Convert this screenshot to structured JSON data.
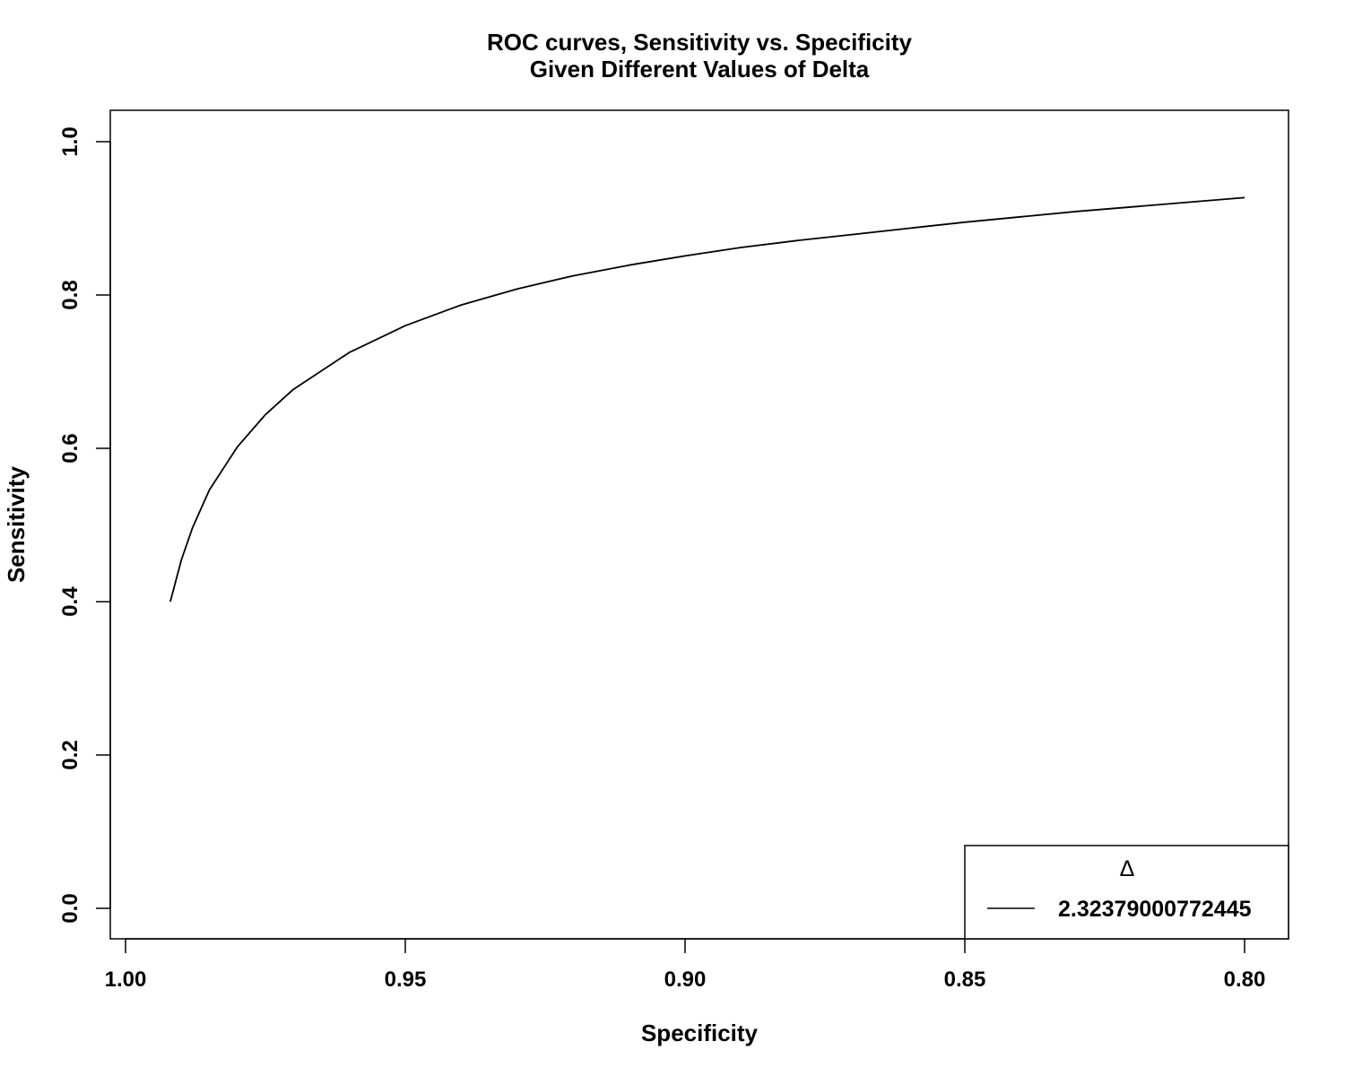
{
  "chart_data": {
    "type": "line",
    "title": "ROC curves, Sensitivity vs. Specificity",
    "subtitle": "Given Different Values of Delta",
    "xlabel": "Specificity",
    "ylabel": "Sensitivity",
    "xlim": [
      1.0,
      0.8
    ],
    "ylim": [
      0.0,
      1.0
    ],
    "x_reversed": true,
    "grid": false,
    "x_ticks": [
      {
        "value": 1.0,
        "label": "1.00"
      },
      {
        "value": 0.95,
        "label": "0.95"
      },
      {
        "value": 0.9,
        "label": "0.90"
      },
      {
        "value": 0.85,
        "label": "0.85"
      },
      {
        "value": 0.8,
        "label": "0.80"
      }
    ],
    "y_ticks": [
      {
        "value": 0.0,
        "label": "0.0"
      },
      {
        "value": 0.2,
        "label": "0.2"
      },
      {
        "value": 0.4,
        "label": "0.4"
      },
      {
        "value": 0.6,
        "label": "0.6"
      },
      {
        "value": 0.8,
        "label": "0.8"
      },
      {
        "value": 1.0,
        "label": "1.0"
      }
    ],
    "legend": {
      "placement": "bottom-right",
      "title": "Δ",
      "entries": [
        "2.32379000772445"
      ]
    },
    "series": [
      {
        "name": "2.32379000772445",
        "color": "#000000",
        "x": [
          0.992,
          0.99,
          0.988,
          0.985,
          0.98,
          0.975,
          0.97,
          0.96,
          0.95,
          0.94,
          0.93,
          0.92,
          0.91,
          0.9,
          0.89,
          0.88,
          0.87,
          0.86,
          0.85,
          0.84,
          0.83,
          0.82,
          0.81,
          0.8
        ],
        "y": [
          0.4,
          0.455,
          0.497,
          0.546,
          0.602,
          0.644,
          0.677,
          0.725,
          0.76,
          0.787,
          0.808,
          0.825,
          0.839,
          0.851,
          0.862,
          0.871,
          0.879,
          0.887,
          0.895,
          0.902,
          0.909,
          0.915,
          0.921,
          0.927
        ]
      }
    ]
  }
}
